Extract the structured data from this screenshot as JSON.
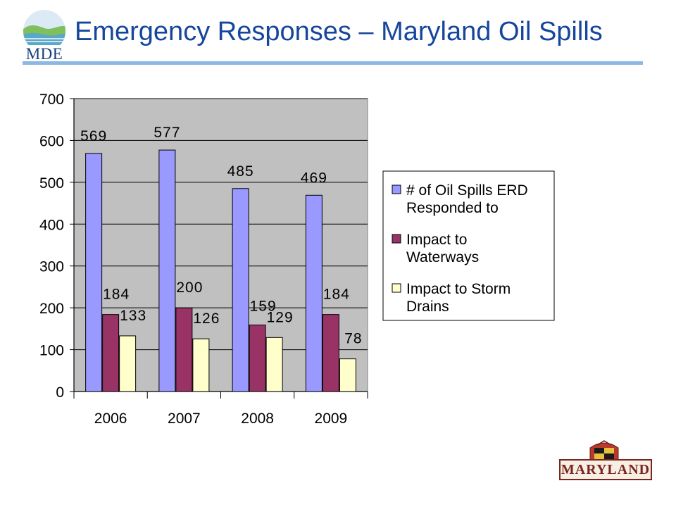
{
  "header": {
    "title": "Emergency Responses – Maryland Oil Spills",
    "logo_text": "MDE"
  },
  "footer": {
    "logo_text": "MARYLAND"
  },
  "colors": {
    "title": "#16469c",
    "rule": "#8cb8e2",
    "plot_bg": "#c0c0c0"
  },
  "chart_data": {
    "type": "bar",
    "categories": [
      "2006",
      "2007",
      "2008",
      "2009"
    ],
    "series": [
      {
        "name": "# of Oil Spills ERD Responded to",
        "values": [
          569,
          577,
          485,
          469
        ],
        "color": "#9999ff"
      },
      {
        "name": "Impact to Waterways",
        "values": [
          184,
          200,
          159,
          184
        ],
        "color": "#993366"
      },
      {
        "name": "Impact to Storm Drains",
        "values": [
          133,
          126,
          129,
          78
        ],
        "color": "#ffffcc"
      }
    ],
    "ylim": [
      0,
      700
    ],
    "yticks": [
      0,
      100,
      200,
      300,
      400,
      500,
      600,
      700
    ],
    "grid": true,
    "legend": "right"
  }
}
